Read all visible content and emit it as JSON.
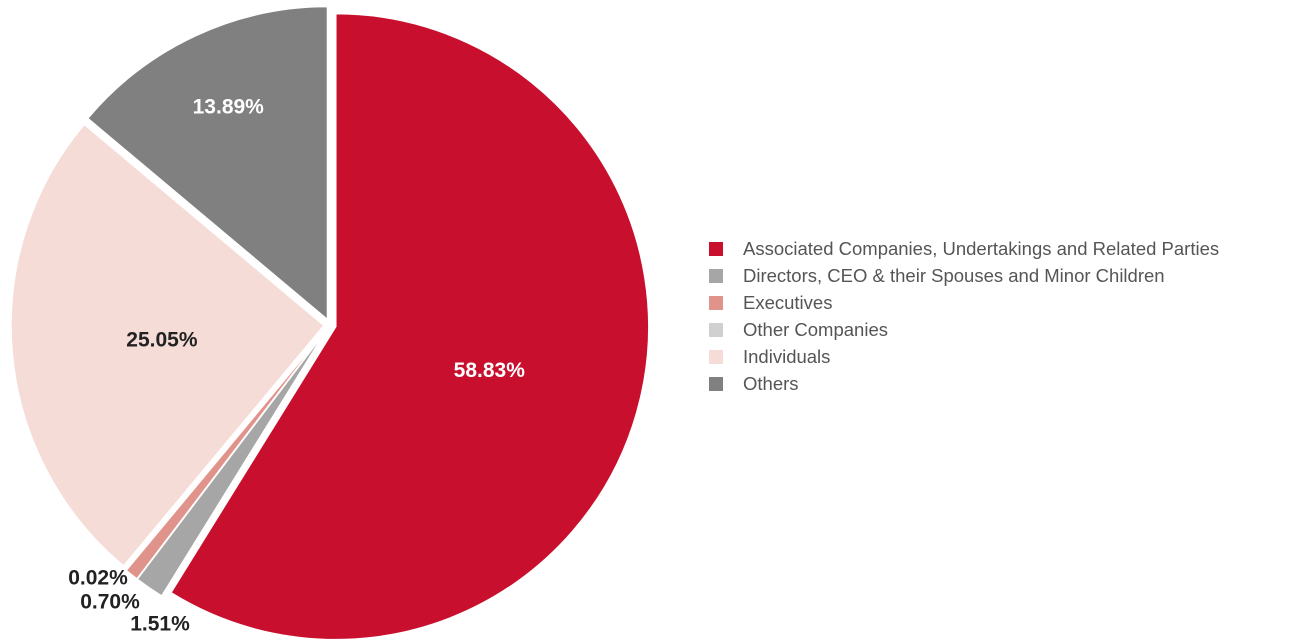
{
  "chart_data": {
    "type": "pie",
    "title": "",
    "legend_position": "right",
    "slices": [
      {
        "name": "Associated Companies, Undertakings and Related Parties",
        "value": 58.83,
        "label": "58.83%",
        "color": "#c8102e",
        "label_color": "#ffffff"
      },
      {
        "name": "Directors, CEO & their Spouses and Minor Children",
        "value": 1.51,
        "label": "1.51%",
        "color": "#a6a6a6",
        "label_color": "#222222"
      },
      {
        "name": "Executives",
        "value": 0.7,
        "label": "0.70%",
        "color": "#e0938b",
        "label_color": "#222222"
      },
      {
        "name": "Other Companies",
        "value": 0.02,
        "label": "0.02%",
        "color": "#d0d0d0",
        "label_color": "#222222"
      },
      {
        "name": "Individuals",
        "value": 25.05,
        "label": "25.05%",
        "color": "#f5dcd7",
        "label_color": "#222222"
      },
      {
        "name": "Others",
        "value": 13.89,
        "label": "13.89%",
        "color": "#808080",
        "label_color": "#ffffff"
      }
    ]
  }
}
